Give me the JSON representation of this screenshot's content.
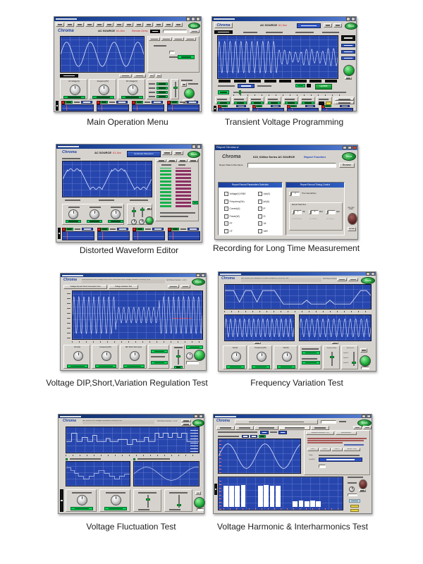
{
  "page": {
    "background": "#ffffff"
  },
  "figures": [
    {
      "caption": "Main Operation Menu",
      "logo": "Chroma",
      "title": "AC SOURCE",
      "model": "61-5xx",
      "status": "Remote Demo",
      "back": "Back",
      "knobs": [
        "AC Voltage(V)",
        "Frequency(Hz)",
        "DC Voltage(V)"
      ]
    },
    {
      "caption": "Transient Voltage Programming",
      "logo": "Chroma",
      "title": "AC SOURCE",
      "model": "61-5xx",
      "back": "Back",
      "update": "Update"
    },
    {
      "caption": "Distorted Waveform Editor",
      "logo": "Chroma",
      "title": "AC SOURCE",
      "model": "61-5xx",
      "center_button": "Synthesis Waveform",
      "back": "Back"
    },
    {
      "caption": "Recording for Long Time Measurement",
      "window_title": "Report Chroma.vi",
      "logo": "Chroma",
      "title": "615_61Mxx Series AC SOURCE",
      "title_accent": "Report Function",
      "back": "Back",
      "file_label": "Report Data & File Name",
      "browse": "Browse",
      "params_header": "Report Record Parameters Selection",
      "params_col1": [
        "Voltage(V) RMS",
        "Frequency(Hz)",
        "Current(A)",
        "Power(W)",
        "PF",
        "CF"
      ],
      "params_col2": [
        "Vpk(V)",
        "Ipk(A)",
        "IP",
        "IS",
        "VA",
        "VAR"
      ],
      "timing_header": "Report Record Timing Control",
      "interval_value": "1",
      "interval_label": "Time Interval(Sec)",
      "total_label": "Record Total Time",
      "hr": {
        "value": "1",
        "unit": "HR",
        "hint": "(0~1000 Hour)"
      },
      "min": {
        "value": "0",
        "unit": "MIN",
        "hint": "(0~59 Min)"
      },
      "sec": {
        "value": "0",
        "unit": "SEC",
        "hint": "(0~59 Sec)"
      },
      "record_label": "RECORD START",
      "stop": "STOP"
    },
    {
      "caption": "Voltage DIP,Short,Variation Regulation Test",
      "logo": "Chroma",
      "title": "61501/61604-x IEC Voltage Dips,Short Interruption and Voltage Variation Immunity Test",
      "version": "Soft Panel Version : 1.0.0",
      "back": "Back",
      "tabs": [
        "Voltage Dip and Short Interruption Test",
        "Voltage Variation Test"
      ],
      "knobs": [
        "Vrms(V)",
        "Frequency(Hz)",
        "IEC Short Test Cycle"
      ]
    },
    {
      "caption": "Frequency Variation Test",
      "logo": "Chroma",
      "title": "IEC 61000-4-28 Variation of Power Frequency Immunity Test",
      "version": "Soft Panel Version : 1.0.0",
      "back": "Back",
      "knobs": [
        "Vac(V)",
        "Frequency(Hz)",
        "Vac(%)"
      ],
      "slider1": "Variation Rate",
      "slider2": "Test Level",
      "levels": [
        "Level 1",
        "Level 2",
        "Level 3"
      ]
    },
    {
      "caption": "Voltage Fluctuation Test",
      "logo": "Chroma",
      "title": "IEC 61000-4-14 Voltage Fluctuation Immunity Test",
      "version": "Soft Panel Version : 1.1.0",
      "back": "Back"
    },
    {
      "caption": "Voltage Harmonic & Interharmonics Test",
      "logo": "Chroma",
      "back": "Back",
      "panel_tabs": [
        "Individual Harmonics Test",
        "Interharmonics"
      ],
      "class_buttons": [
        "Class 1",
        "Class 2",
        "Class 3",
        "Meister Curve"
      ],
      "table_rows": [
        "Order",
        "Level(%)"
      ],
      "spectrum": [
        78,
        80,
        79,
        81,
        0,
        0,
        79,
        81,
        80,
        78,
        0,
        0,
        22,
        23,
        22,
        23,
        22,
        0,
        0,
        0
      ]
    }
  ]
}
